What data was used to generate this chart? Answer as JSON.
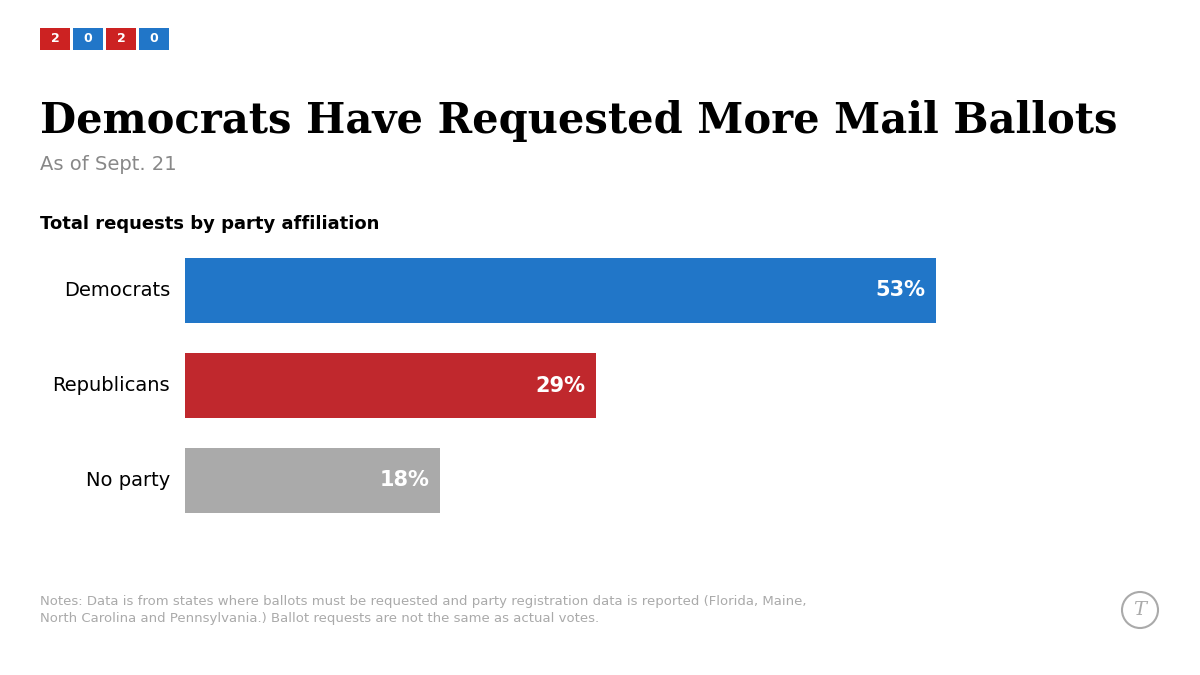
{
  "title": "Democrats Have Requested More Mail Ballots",
  "subtitle": "As of Sept. 21",
  "section_label": "Total requests by party affiliation",
  "badge_texts": [
    "2",
    "0",
    "2",
    "0"
  ],
  "badge_colors": [
    "#cc2222",
    "#2176c8",
    "#cc2222",
    "#2176c8"
  ],
  "categories": [
    "Democrats",
    "Republicans",
    "No party"
  ],
  "values": [
    53,
    29,
    18
  ],
  "bar_colors": [
    "#2176c8",
    "#c0282d",
    "#aaaaaa"
  ],
  "labels": [
    "53%",
    "29%",
    "18%"
  ],
  "notes_line1": "Notes: Data is from states where ballots must be requested and party registration data is reported (Florida, Maine,",
  "notes_line2": "North Carolina and Pennsylvania.) Ballot requests are not the same as actual votes.",
  "background_color": "#ffffff",
  "text_color": "#000000",
  "label_color": "#ffffff",
  "subtitle_color": "#888888",
  "notes_color": "#aaaaaa",
  "max_value": 60
}
